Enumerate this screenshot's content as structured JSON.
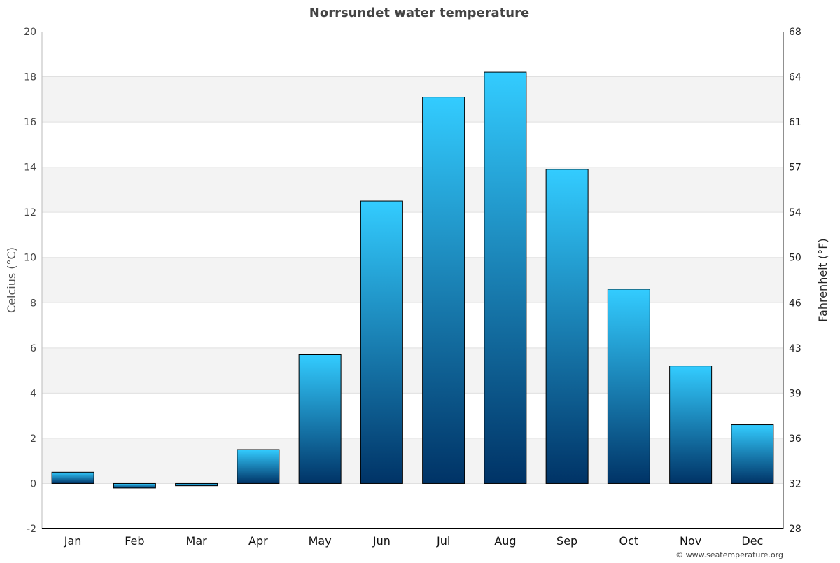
{
  "chart_data": {
    "type": "bar",
    "title": "Norrsundet water temperature",
    "ylabel": "Celcius (°C)",
    "y2label": "Fahrenheit (°F)",
    "categories": [
      "Jan",
      "Feb",
      "Mar",
      "Apr",
      "May",
      "Jun",
      "Jul",
      "Aug",
      "Sep",
      "Oct",
      "Nov",
      "Dec"
    ],
    "values": [
      0.5,
      -0.2,
      -0.1,
      1.5,
      5.7,
      12.5,
      17.1,
      18.2,
      13.9,
      8.6,
      5.2,
      2.6
    ],
    "ylim": [
      -2,
      20
    ],
    "yticks": [
      "-2",
      "0",
      "2",
      "4",
      "6",
      "8",
      "10",
      "12",
      "14",
      "16",
      "18",
      "20"
    ],
    "y2ticks": [
      "28",
      "32",
      "36",
      "39",
      "43",
      "46",
      "50",
      "54",
      "57",
      "61",
      "64",
      "68"
    ],
    "grid": true,
    "colors": {
      "bar_top": "#33ccff",
      "bar_bottom": "#003366",
      "band": "#f3f3f3"
    }
  },
  "credit": "© www.seatemperature.org"
}
